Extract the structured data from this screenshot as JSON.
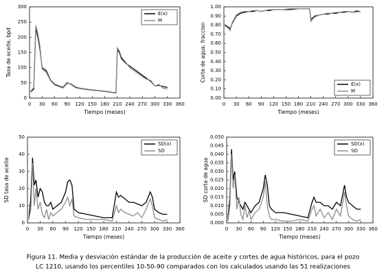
{
  "chart_data": [
    {
      "type": "line",
      "ylabel": "Tasa de aceite, bpd",
      "xlabel": "Tiempo (meses)",
      "legend": "upper right",
      "grid": false,
      "xlim": [
        0,
        360
      ],
      "xticks": [
        0,
        30,
        60,
        90,
        120,
        150,
        180,
        210,
        240,
        270,
        300,
        330,
        360
      ],
      "ylim": [
        0,
        300
      ],
      "yticks": [
        0,
        50,
        100,
        150,
        200,
        250,
        300
      ],
      "x": [
        3,
        10,
        15,
        20,
        25,
        30,
        40,
        50,
        60,
        70,
        80,
        90,
        100,
        110,
        120,
        140,
        160,
        180,
        200,
        207,
        210,
        215,
        220,
        230,
        240,
        250,
        260,
        270,
        280,
        290,
        300,
        310,
        320,
        330
      ],
      "series": [
        {
          "name": "E(x)",
          "color": "#000000",
          "values": [
            20,
            30,
            230,
            200,
            160,
            100,
            90,
            60,
            45,
            40,
            35,
            50,
            45,
            35,
            32,
            28,
            25,
            22,
            18,
            17,
            160,
            150,
            130,
            115,
            105,
            95,
            85,
            75,
            65,
            55,
            40,
            42,
            38,
            35
          ]
        },
        {
          "name": "M",
          "color": "#8c8c8c",
          "values": [
            22,
            35,
            240,
            210,
            170,
            95,
            85,
            58,
            43,
            38,
            33,
            48,
            47,
            37,
            33,
            29,
            26,
            23,
            19,
            18,
            165,
            155,
            135,
            118,
            100,
            90,
            80,
            70,
            62,
            58,
            40,
            45,
            32,
            30
          ]
        }
      ]
    },
    {
      "type": "line",
      "ylabel": "Corte de agua, fraccion",
      "xlabel": "Tiempo (meses)",
      "legend": "lower right",
      "grid": false,
      "xlim": [
        0,
        360
      ],
      "xticks": [
        0,
        30,
        60,
        90,
        120,
        150,
        180,
        210,
        240,
        270,
        300,
        330,
        360
      ],
      "ylim": [
        0,
        1
      ],
      "yticks": [
        {
          "value": 0,
          "label": "0.00"
        },
        {
          "value": 0.1,
          "label": "0.10"
        },
        {
          "value": 0.2,
          "label": "0.20"
        },
        {
          "value": 0.3,
          "label": "0.30"
        },
        {
          "value": 0.4,
          "label": "0.40"
        },
        {
          "value": 0.5,
          "label": "0.50"
        },
        {
          "value": 0.6,
          "label": "0.60"
        },
        {
          "value": 0.7,
          "label": "0.70"
        },
        {
          "value": 0.8,
          "label": "0.80"
        },
        {
          "value": 0.9,
          "label": "0.90"
        },
        {
          "value": 1,
          "label": "1.00"
        }
      ],
      "x": [
        3,
        10,
        15,
        20,
        25,
        30,
        40,
        50,
        60,
        70,
        80,
        90,
        100,
        110,
        120,
        140,
        160,
        180,
        200,
        207,
        210,
        215,
        220,
        230,
        240,
        250,
        260,
        270,
        280,
        290,
        300,
        310,
        320,
        330
      ],
      "series": [
        {
          "name": "E(x)",
          "color": "#000000",
          "values": [
            0.8,
            0.78,
            0.76,
            0.82,
            0.86,
            0.9,
            0.93,
            0.94,
            0.95,
            0.95,
            0.96,
            0.95,
            0.96,
            0.96,
            0.97,
            0.97,
            0.97,
            0.98,
            0.98,
            0.98,
            0.86,
            0.88,
            0.9,
            0.91,
            0.92,
            0.92,
            0.93,
            0.93,
            0.94,
            0.94,
            0.95,
            0.94,
            0.95,
            0.95
          ]
        },
        {
          "name": "M",
          "color": "#8c8c8c",
          "values": [
            0.79,
            0.77,
            0.74,
            0.83,
            0.87,
            0.91,
            0.94,
            0.95,
            0.95,
            0.96,
            0.96,
            0.95,
            0.96,
            0.97,
            0.97,
            0.97,
            0.98,
            0.98,
            0.98,
            0.98,
            0.84,
            0.87,
            0.89,
            0.91,
            0.92,
            0.93,
            0.93,
            0.94,
            0.94,
            0.95,
            0.95,
            0.94,
            0.96,
            0.95
          ]
        }
      ]
    },
    {
      "type": "line",
      "ylabel": "SD tasa de aceite",
      "xlabel": "Tiempo (meses)",
      "legend": "upper right",
      "grid": false,
      "xlim": [
        0,
        360
      ],
      "xticks": [
        0,
        30,
        60,
        90,
        120,
        150,
        180,
        210,
        240,
        270,
        300,
        330,
        360
      ],
      "ylim": [
        0,
        50
      ],
      "yticks": [
        0,
        10,
        20,
        30,
        40,
        50
      ],
      "x": [
        3,
        8,
        12,
        16,
        20,
        25,
        30,
        35,
        40,
        45,
        50,
        55,
        60,
        70,
        80,
        90,
        95,
        100,
        105,
        110,
        120,
        140,
        160,
        180,
        200,
        210,
        215,
        220,
        230,
        240,
        250,
        260,
        270,
        280,
        290,
        295,
        300,
        310,
        320,
        330
      ],
      "series": [
        {
          "name": "SD(x)",
          "color": "#000000",
          "values": [
            2,
            15,
            38,
            22,
            25,
            15,
            20,
            18,
            12,
            10,
            10,
            12,
            8,
            10,
            12,
            18,
            24,
            25,
            22,
            8,
            6,
            5,
            4,
            3,
            3,
            18,
            15,
            16,
            14,
            12,
            12,
            11,
            10,
            12,
            18,
            15,
            8,
            6,
            5,
            5
          ]
        },
        {
          "name": "SD",
          "color": "#8c8c8c",
          "values": [
            2,
            8,
            35,
            10,
            20,
            8,
            12,
            5,
            3,
            8,
            2,
            6,
            4,
            6,
            8,
            12,
            15,
            10,
            14,
            4,
            3,
            2,
            2,
            2,
            1,
            10,
            6,
            8,
            6,
            5,
            4,
            6,
            3,
            8,
            14,
            10,
            3,
            2,
            1,
            2
          ]
        }
      ]
    },
    {
      "type": "line",
      "ylabel": "SD corte de agua",
      "xlabel": "Tiempo (meses)",
      "legend": "upper right",
      "grid": false,
      "xlim": [
        0,
        360
      ],
      "xticks": [
        0,
        30,
        60,
        90,
        120,
        150,
        180,
        210,
        240,
        270,
        300,
        330,
        360
      ],
      "ylim": [
        0,
        0.05
      ],
      "yticks": [
        {
          "value": 0,
          "label": "0.000"
        },
        {
          "value": 0.005,
          "label": "0.005"
        },
        {
          "value": 0.01,
          "label": "0.010"
        },
        {
          "value": 0.015,
          "label": "0.015"
        },
        {
          "value": 0.02,
          "label": "0.020"
        },
        {
          "value": 0.025,
          "label": "0.025"
        },
        {
          "value": 0.03,
          "label": "0.030"
        },
        {
          "value": 0.035,
          "label": "0.035"
        },
        {
          "value": 0.04,
          "label": "0.040"
        },
        {
          "value": 0.045,
          "label": "0.045"
        },
        {
          "value": 0.05,
          "label": "0.050"
        }
      ],
      "x": [
        3,
        8,
        12,
        16,
        20,
        25,
        30,
        35,
        40,
        45,
        50,
        55,
        60,
        70,
        80,
        90,
        95,
        100,
        105,
        110,
        120,
        140,
        160,
        180,
        200,
        210,
        215,
        220,
        230,
        240,
        250,
        260,
        270,
        280,
        290,
        295,
        300,
        310,
        320,
        330
      ],
      "series": [
        {
          "name": "SD(x)",
          "color": "#000000",
          "values": [
            0.002,
            0.015,
            0.043,
            0.025,
            0.03,
            0.015,
            0.012,
            0.01,
            0.008,
            0.012,
            0.01,
            0.008,
            0.006,
            0.01,
            0.012,
            0.02,
            0.028,
            0.022,
            0.01,
            0.008,
            0.006,
            0.006,
            0.005,
            0.004,
            0.003,
            0.012,
            0.015,
            0.012,
            0.012,
            0.01,
            0.01,
            0.008,
            0.012,
            0.01,
            0.022,
            0.015,
            0.012,
            0.01,
            0.008,
            0.008
          ]
        },
        {
          "name": "SD",
          "color": "#8c8c8c",
          "values": [
            0.001,
            0.01,
            0.04,
            0.02,
            0.028,
            0.008,
            0.015,
            0.005,
            0.002,
            0.01,
            0.003,
            0.007,
            0.002,
            0.006,
            0.008,
            0.015,
            0.024,
            0.01,
            0.004,
            0.002,
            0.002,
            0.001,
            0.001,
            0.002,
            0.001,
            0.008,
            0.01,
            0.004,
            0.008,
            0.003,
            0.006,
            0.002,
            0.008,
            0.004,
            0.018,
            0.01,
            0.004,
            0.002,
            0.001,
            0.002
          ]
        }
      ]
    }
  ],
  "caption": [
    "Figura 11. Media y desviación estándar de la producción de aceite y cortes de agua históricos, para el pozo",
    "LC 1210, usando los percentiles 10-50-90 comparados con los calculados usando las 51 realizaciones"
  ]
}
